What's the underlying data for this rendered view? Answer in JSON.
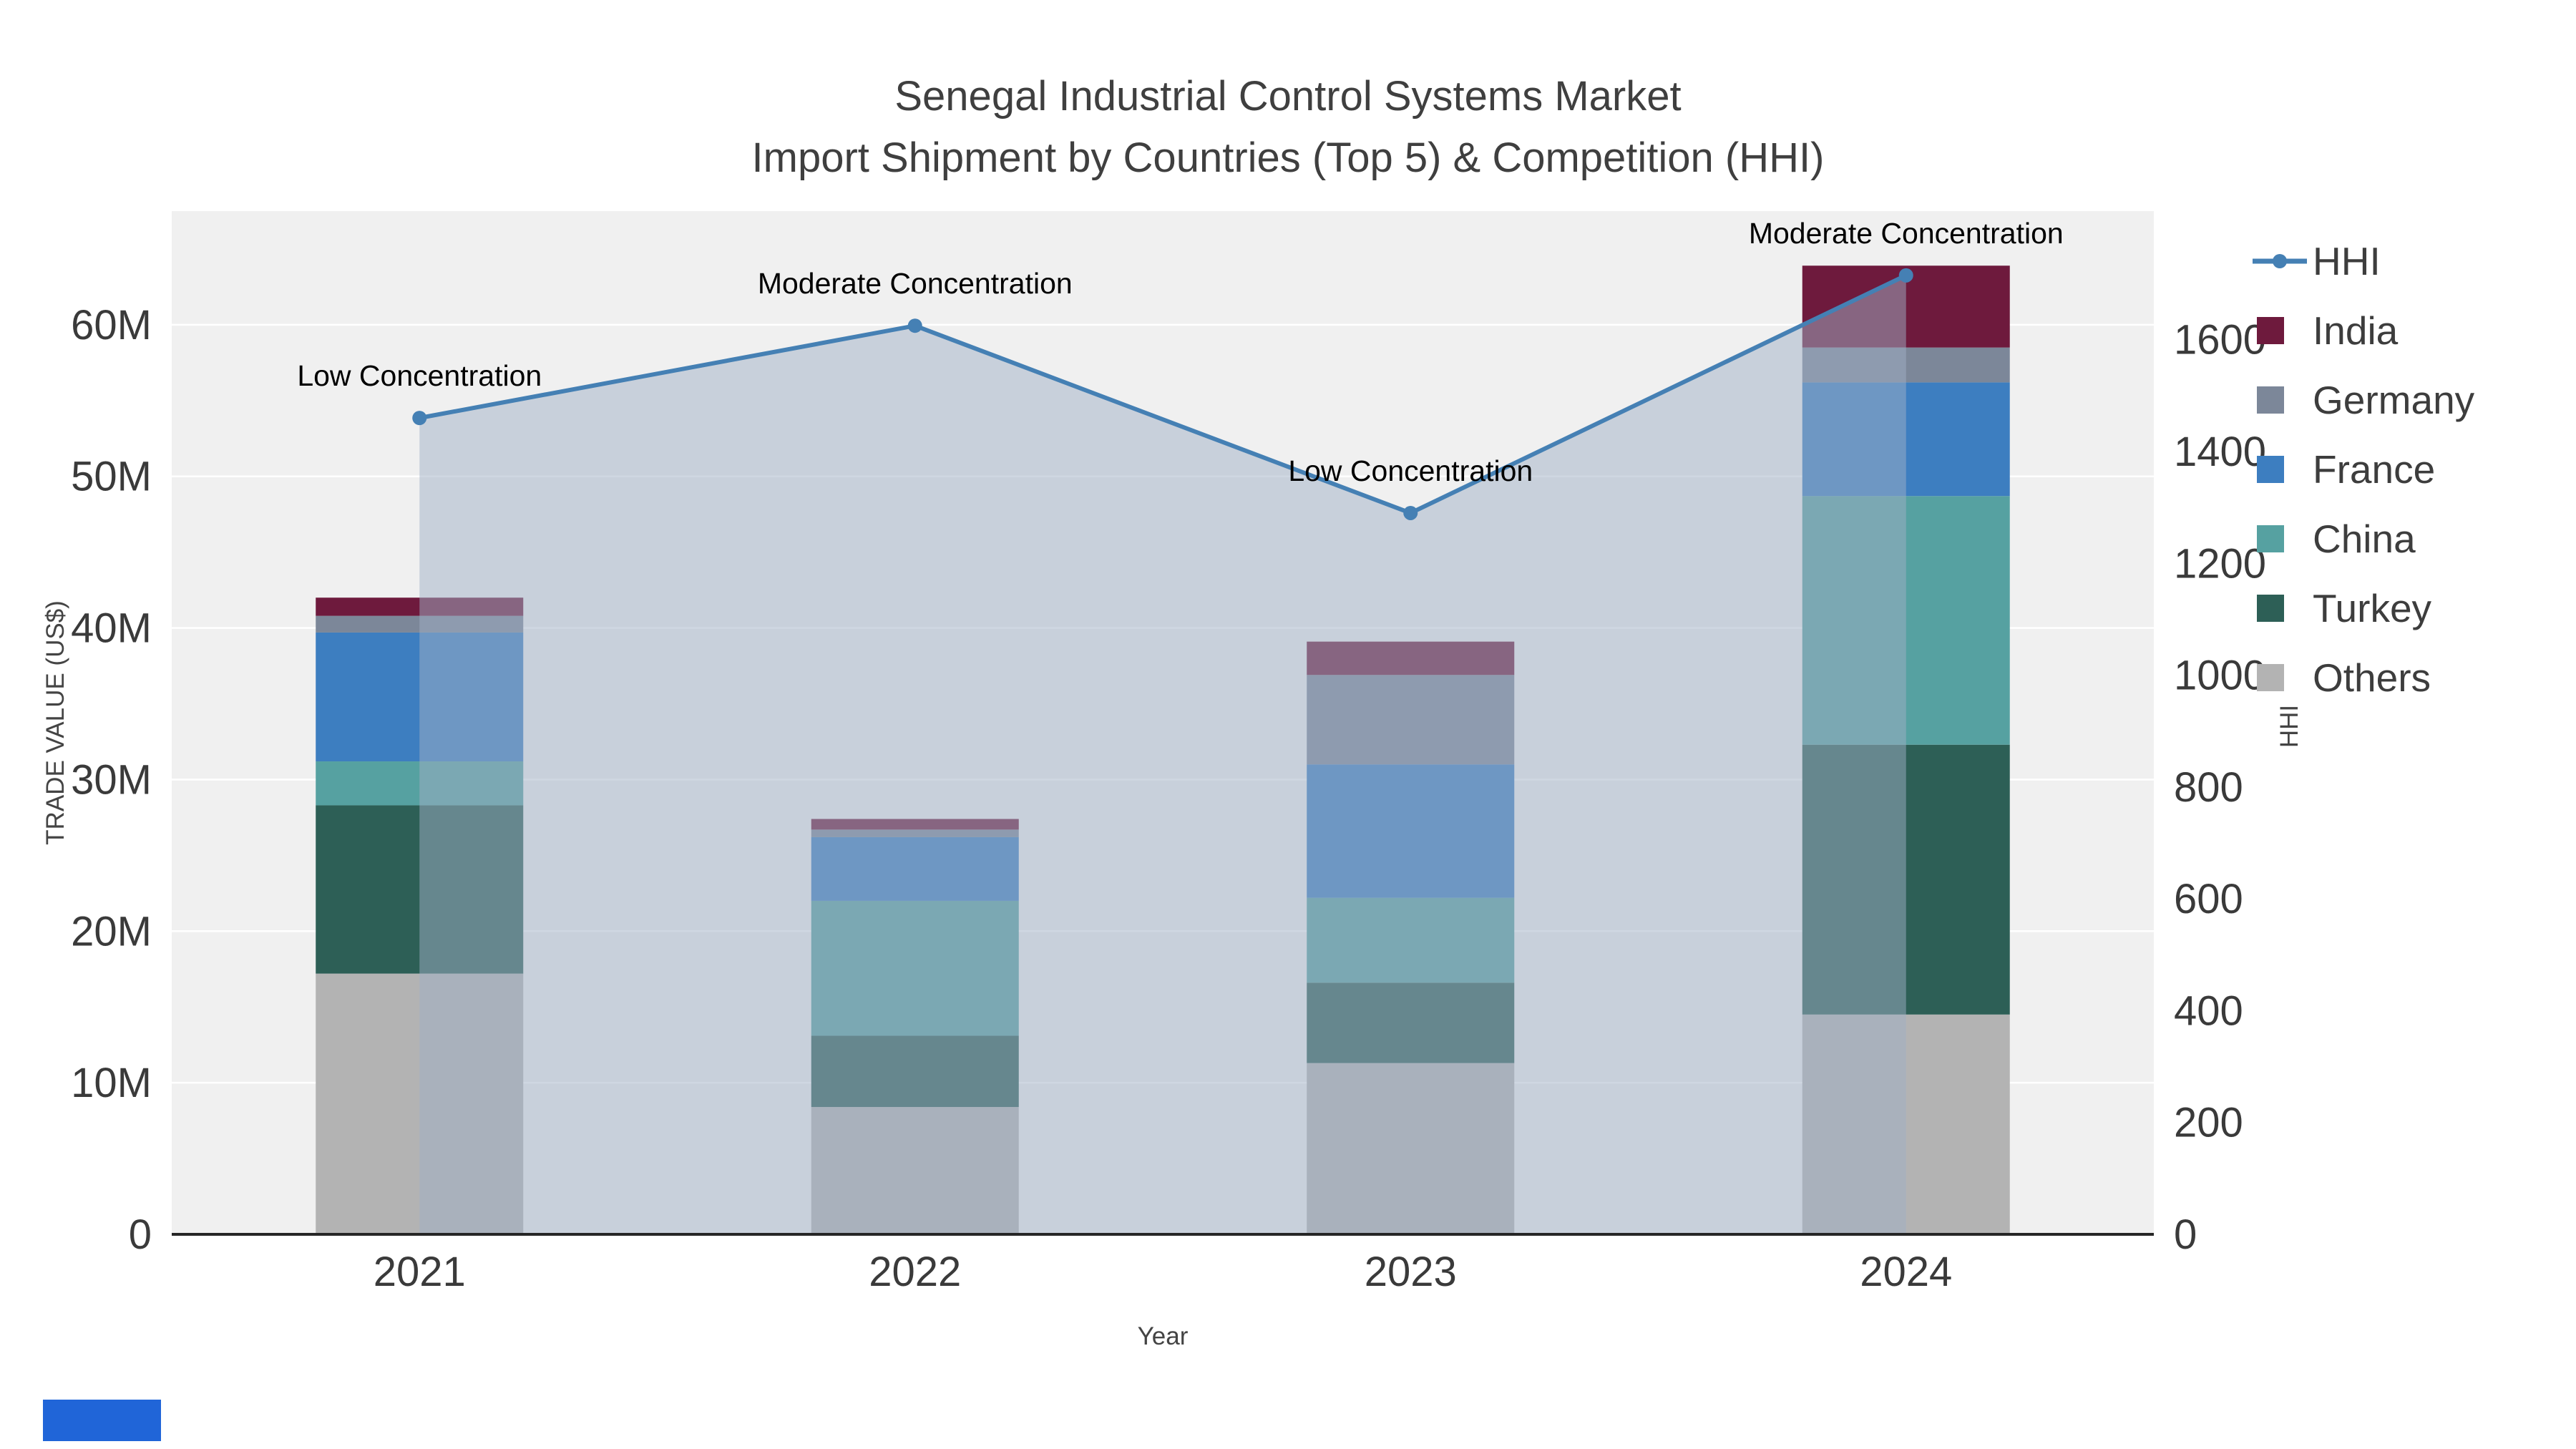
{
  "chart": {
    "title_line1": "Senegal Industrial Control Systems Market",
    "title_line2": "Import Shipment by Countries (Top 5) & Competition (HHI)",
    "xlabel": "Year",
    "ylabel": "TRADE VALUE (US$)",
    "ylabel_right": "HHI"
  },
  "chart_data": {
    "type": "bar+line",
    "subtype": "stacked bars with HHI area line on secondary axis",
    "categories": [
      "2021",
      "2022",
      "2023",
      "2024"
    ],
    "values_unit": "millions USD",
    "bar_series": [
      {
        "name": "Others",
        "color": "#b3b3b3",
        "values": [
          17.2,
          8.4,
          11.3,
          14.5
        ]
      },
      {
        "name": "Turkey",
        "color": "#2d5f56",
        "values": [
          11.1,
          4.7,
          5.3,
          17.8
        ]
      },
      {
        "name": "China",
        "color": "#56a1a1",
        "values": [
          2.9,
          8.9,
          5.6,
          16.4
        ]
      },
      {
        "name": "France",
        "color": "#3d7ec0",
        "values": [
          8.5,
          4.2,
          8.8,
          7.5
        ]
      },
      {
        "name": "Germany",
        "color": "#7c8799",
        "values": [
          1.1,
          0.5,
          5.9,
          2.3
        ]
      },
      {
        "name": "India",
        "color": "#6e1a3d",
        "values": [
          1.2,
          0.7,
          2.2,
          5.4
        ]
      }
    ],
    "line_series": {
      "name": "HHI",
      "color": "#4580b4",
      "fill": "rgba(160,175,198,0.5)",
      "values": [
        1460,
        1625,
        1290,
        1715
      ]
    },
    "annotations": [
      "Low Concentration",
      "Moderate Concentration",
      "Low Concentration",
      "Moderate Concentration"
    ],
    "left_axis": {
      "ticks": [
        "0",
        "10M",
        "20M",
        "30M",
        "40M",
        "50M",
        "60M"
      ],
      "tick_values": [
        0,
        10,
        20,
        30,
        40,
        50,
        60
      ],
      "max": 67.5
    },
    "right_axis": {
      "ticks": [
        "0",
        "200",
        "400",
        "600",
        "800",
        "1000",
        "1200",
        "1400",
        "1600"
      ],
      "tick_values": [
        0,
        200,
        400,
        600,
        800,
        1000,
        1200,
        1400,
        1600
      ],
      "max": 1830
    },
    "legend_position": "top-right",
    "grid": true,
    "decor": {
      "corner_bar_color": "#2065d8"
    }
  }
}
